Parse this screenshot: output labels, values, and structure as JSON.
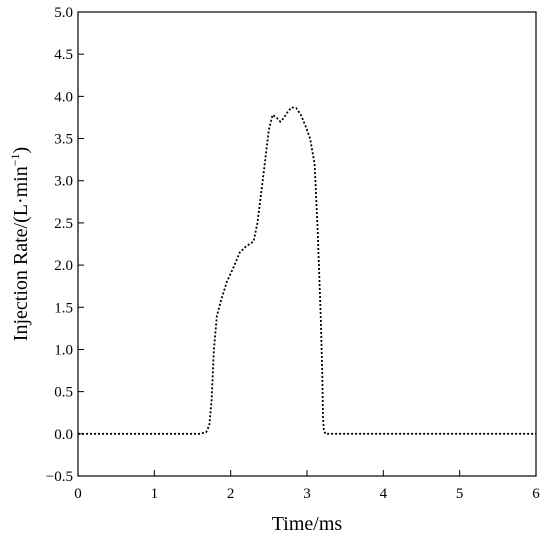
{
  "chart_data": {
    "type": "line",
    "xlabel": "Time/ms",
    "ylabel_main": "Injection Rate/(L·min",
    "ylabel_sup": "−1",
    "ylabel_close": ")",
    "xlim": [
      0,
      6
    ],
    "ylim": [
      -0.5,
      5.0
    ],
    "x_ticks": [
      "0",
      "1",
      "2",
      "3",
      "4",
      "5",
      "6"
    ],
    "y_ticks": [
      "−0.5",
      "0.0",
      "0.5",
      "1.0",
      "1.5",
      "2.0",
      "2.5",
      "3.0",
      "3.5",
      "4.0",
      "4.5",
      "5.0"
    ],
    "grid": false,
    "line_style": "dotted",
    "series": [
      {
        "x": [
          0.0,
          1.6,
          1.68,
          1.72,
          1.75,
          1.78,
          1.82,
          1.88,
          1.95,
          2.05,
          2.12,
          2.2,
          2.3,
          2.35,
          2.42,
          2.5,
          2.55,
          2.6,
          2.65,
          2.7,
          2.75,
          2.8,
          2.86,
          2.92,
          2.98,
          3.04,
          3.1,
          3.14,
          3.18,
          3.2,
          3.21,
          3.22,
          3.24,
          3.26,
          3.28,
          4.0,
          5.0,
          6.0
        ],
        "y": [
          0.0,
          0.0,
          0.02,
          0.1,
          0.4,
          1.0,
          1.4,
          1.6,
          1.8,
          2.0,
          2.15,
          2.22,
          2.28,
          2.5,
          3.0,
          3.6,
          3.78,
          3.75,
          3.7,
          3.75,
          3.82,
          3.87,
          3.86,
          3.78,
          3.65,
          3.5,
          3.2,
          2.4,
          1.4,
          0.7,
          0.2,
          0.05,
          0.0,
          0.0,
          0.0,
          0.0,
          0.0,
          0.0
        ]
      }
    ]
  }
}
